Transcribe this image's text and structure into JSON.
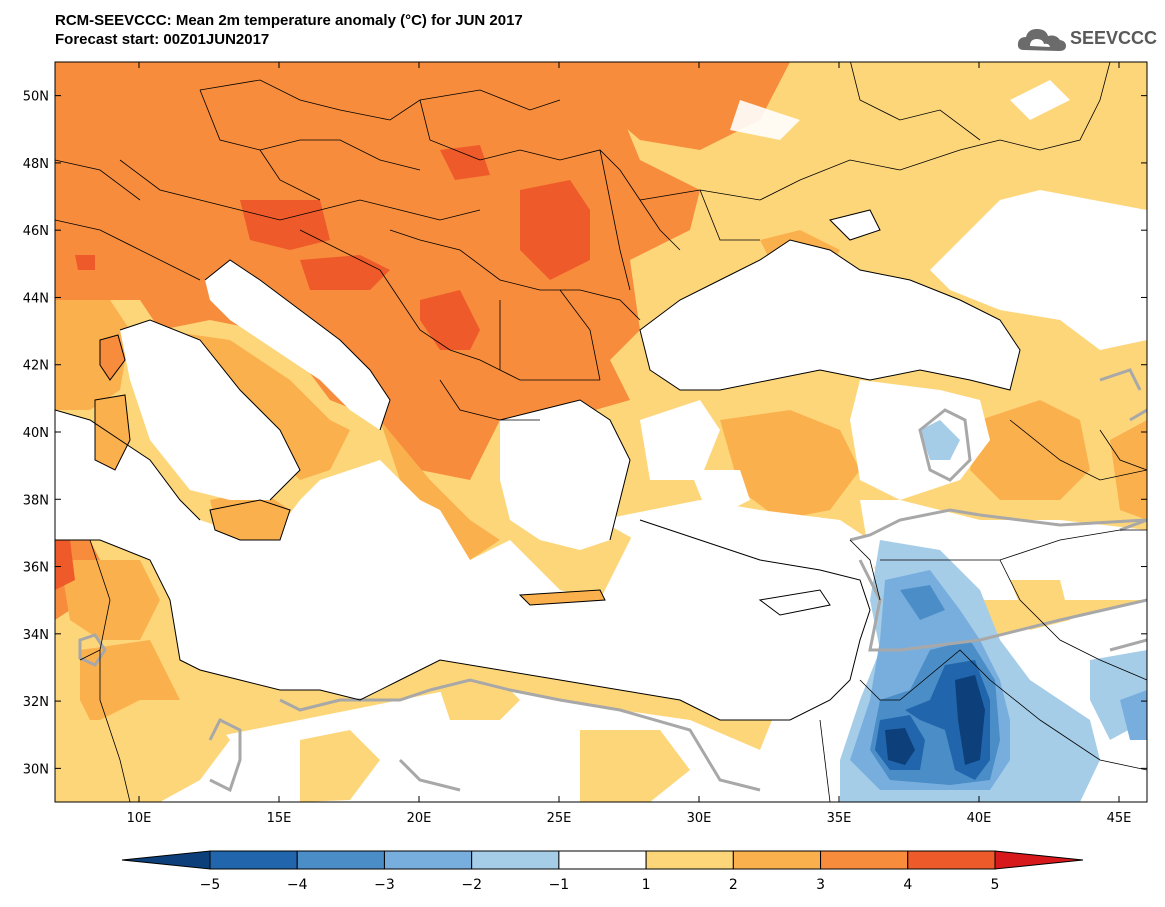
{
  "title": {
    "line1": "RCM-SEEVCCC: Mean 2m temperature anomaly (°C) for JUN 2017",
    "line2": "Forecast start: 00Z01JUN2017"
  },
  "logo": {
    "text": "SEEVCCC",
    "icon": "cloud-logo-icon"
  },
  "map": {
    "lat_labels": [
      "50N",
      "48N",
      "46N",
      "44N",
      "42N",
      "40N",
      "38N",
      "36N",
      "34N",
      "32N",
      "30N"
    ],
    "lon_labels": [
      "10E",
      "15E",
      "20E",
      "25E",
      "30E",
      "35E",
      "40E",
      "45E"
    ],
    "lat_values": [
      50,
      48,
      46,
      44,
      42,
      40,
      38,
      36,
      34,
      32,
      30
    ],
    "lon_values": [
      10,
      15,
      20,
      25,
      30,
      35,
      40,
      45
    ],
    "lon_range": [
      7,
      46
    ],
    "lat_range": [
      29,
      51
    ]
  },
  "colorbar": {
    "labels": [
      "−5",
      "−4",
      "−3",
      "−2",
      "−1",
      "1",
      "2",
      "3",
      "4",
      "5"
    ],
    "values": [
      -5,
      -4,
      -3,
      -2,
      -1,
      1,
      2,
      3,
      4,
      5
    ],
    "colors": [
      "#0d3f7a",
      "#2166ac",
      "#4b8dc6",
      "#78aede",
      "#a6cde8",
      "#ffffff",
      "#fdd67a",
      "#fbb04e",
      "#f78c3c",
      "#ef5a2a",
      "#d7191c"
    ]
  },
  "colors": {
    "ocean": "#ffffff",
    "border": "#000000",
    "contour_zero": "#a8a8a8"
  }
}
